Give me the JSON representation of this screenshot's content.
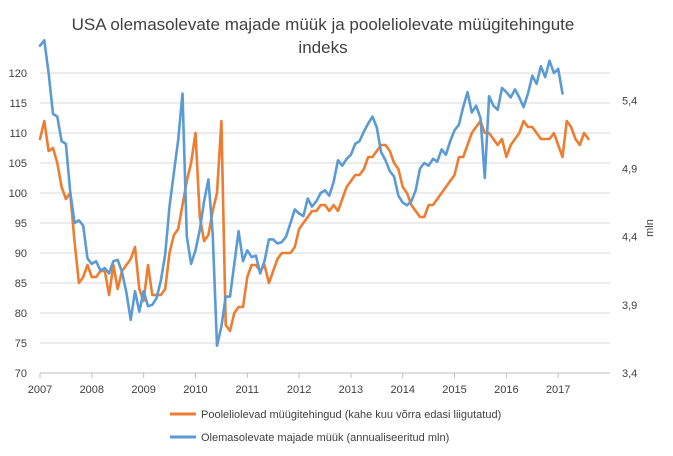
{
  "chart_data": {
    "type": "line",
    "title": "USA olemasolevate majade müük ja pooleliolevate müügitehingute indeks",
    "title_lines": [
      "USA olemasolevate majade müük ja pooleliolevate müügitehingute",
      "indeks"
    ],
    "xlabel": "",
    "ylabel": "",
    "y2label": "mln",
    "x_ticks": [
      "2007",
      "2008",
      "2009",
      "2010",
      "2011",
      "2012",
      "2013",
      "2014",
      "2015",
      "2016",
      "2017"
    ],
    "y_ticks": [
      "70",
      "75",
      "80",
      "85",
      "90",
      "95",
      "100",
      "105",
      "110",
      "115",
      "120"
    ],
    "y2_ticks": [
      "3,4",
      "3,9",
      "4,4",
      "4,9",
      "5,4"
    ],
    "ylim": [
      70,
      120
    ],
    "y2lim": [
      3.4,
      5.6
    ],
    "x_start": 2007,
    "x_end": 2018,
    "grid": true,
    "legend_position": "bottom",
    "series": [
      {
        "name": "Pooleliolevad müügitehingud (kahe kuu võrra edasi liigutatud)",
        "axis": "left",
        "color": "#ED7D31",
        "start": 2007.0,
        "step": 0.0833333,
        "values": [
          109,
          112,
          107,
          107.5,
          105,
          101,
          99,
          100,
          92,
          85,
          86,
          88,
          86,
          86,
          87,
          87,
          83,
          88,
          84,
          87,
          88,
          89,
          91,
          84,
          82,
          88,
          83,
          83,
          83,
          84,
          90,
          93,
          94,
          98,
          102,
          105,
          110,
          96,
          92,
          93,
          97,
          100,
          112,
          78,
          77,
          80,
          81,
          81,
          86,
          88,
          88,
          87,
          88,
          85,
          87,
          89,
          90,
          90,
          90,
          91,
          94,
          95,
          96,
          97,
          97,
          98,
          98,
          97,
          98,
          97,
          99,
          101,
          102,
          103,
          103,
          104,
          106,
          106,
          107,
          108,
          108,
          107,
          105,
          104,
          101,
          100,
          98,
          97,
          96,
          96,
          98,
          98,
          99,
          100,
          101,
          102,
          103,
          106,
          106,
          108,
          110,
          111,
          112,
          110,
          110,
          109,
          108,
          109,
          106,
          108,
          109,
          110,
          112,
          111,
          111,
          110,
          109,
          109,
          109,
          110,
          108,
          106,
          112,
          111,
          109,
          108,
          110,
          109
        ]
      },
      {
        "name": "Olemasolevate majade müük (annualiseeritud mln)",
        "axis": "right",
        "color": "#5B9BD5",
        "start": 2007.0,
        "step": 0.0833333,
        "values": [
          5.8,
          5.84,
          5.6,
          5.3,
          5.28,
          5.1,
          5.08,
          4.73,
          4.5,
          4.52,
          4.48,
          4.24,
          4.2,
          4.22,
          4.15,
          4.17,
          4.13,
          4.22,
          4.23,
          4.14,
          3.99,
          3.79,
          4.0,
          3.85,
          4.0,
          3.89,
          3.9,
          3.95,
          4.08,
          4.27,
          4.62,
          4.87,
          5.11,
          5.45,
          4.4,
          4.2,
          4.3,
          4.45,
          4.66,
          4.82,
          4.42,
          3.6,
          3.74,
          3.96,
          3.96,
          4.2,
          4.44,
          4.22,
          4.3,
          4.25,
          4.26,
          4.13,
          4.22,
          4.38,
          4.38,
          4.35,
          4.36,
          4.4,
          4.5,
          4.6,
          4.57,
          4.55,
          4.68,
          4.62,
          4.66,
          4.72,
          4.74,
          4.7,
          4.8,
          4.96,
          4.92,
          4.97,
          5.0,
          5.08,
          5.1,
          5.17,
          5.23,
          5.28,
          5.2,
          5.02,
          4.96,
          4.88,
          4.84,
          4.7,
          4.65,
          4.63,
          4.66,
          4.74,
          4.9,
          4.94,
          4.92,
          4.97,
          4.95,
          5.04,
          5.0,
          5.1,
          5.18,
          5.22,
          5.35,
          5.46,
          5.31,
          5.36,
          5.27,
          4.83,
          5.43,
          5.36,
          5.33,
          5.49,
          5.46,
          5.42,
          5.48,
          5.42,
          5.35,
          5.45,
          5.58,
          5.52,
          5.65,
          5.57,
          5.69,
          5.6,
          5.63,
          5.45
        ]
      }
    ]
  }
}
